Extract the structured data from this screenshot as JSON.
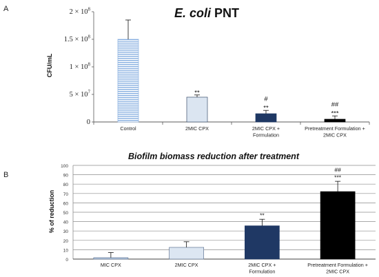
{
  "chart_data": [
    {
      "type": "bar",
      "panel_label": "A",
      "title": {
        "italic": "E. coli",
        "plain": "PNT"
      },
      "ylabel": "CFU/mL",
      "categories": [
        [
          "Control"
        ],
        [
          "2MIC CPX"
        ],
        [
          "2MIC CPX +",
          "Formulation"
        ],
        [
          "Pretreatment Formulation +",
          "2MIC CPX"
        ]
      ],
      "values": [
        150000000,
        45000000,
        15000000,
        5000000
      ],
      "errors": [
        35000000,
        4000000,
        6000000,
        6000000
      ],
      "significance": [
        [],
        [
          "**"
        ],
        [
          "#",
          "**"
        ],
        [
          "##",
          "***"
        ]
      ],
      "ylim": [
        0,
        200000000
      ],
      "yticks": [
        0,
        50000000,
        100000000,
        150000000,
        200000000
      ],
      "ytick_labels": [
        {
          "text": "0"
        },
        {
          "text": "5 × 10",
          "exp": "7"
        },
        {
          "text": "1 × 10",
          "exp": "8"
        },
        {
          "text": "1.5 × 10",
          "exp": "8"
        },
        {
          "text": "2 × 10",
          "exp": "8"
        }
      ],
      "grid": false,
      "legend": false,
      "striped": [
        true,
        false,
        false,
        false
      ],
      "colors": [
        "#8db3e2",
        "#dbe5f1",
        "#1f3864",
        "#000000"
      ],
      "edge_colors": [
        "#8db3e2",
        "#3b4e6b",
        "#1f3864",
        "#000000"
      ]
    },
    {
      "type": "bar",
      "panel_label": "B",
      "title": "Biofilm biomass reduction after treatment",
      "ylabel": "% of reduction",
      "categories": [
        [
          "MIC CPX"
        ],
        [
          "2MIC CPX"
        ],
        [
          "2MIC CPX +",
          "Formulation"
        ],
        [
          "Pretreatment Formulation +",
          "2MIC CPX"
        ]
      ],
      "values": [
        1.5,
        12.5,
        35.5,
        72
      ],
      "errors": [
        5.5,
        6,
        7,
        11
      ],
      "significance": [
        [],
        [],
        [
          "**"
        ],
        [
          "##",
          "***"
        ]
      ],
      "ylim": [
        0,
        100
      ],
      "yticks": [
        0,
        10,
        20,
        30,
        40,
        50,
        60,
        70,
        80,
        90,
        100
      ],
      "ytick_labels": [
        "0",
        "10",
        "20",
        "30",
        "40",
        "50",
        "60",
        "70",
        "80",
        "90",
        "100"
      ],
      "grid": true,
      "legend": false,
      "striped": [
        false,
        false,
        false,
        false
      ],
      "colors": [
        "#b9cde5",
        "#dce6f2",
        "#1f3864",
        "#000000"
      ],
      "edge_colors": [
        "#5f7391",
        "#5f7391",
        "#1f3864",
        "#000000"
      ]
    }
  ]
}
